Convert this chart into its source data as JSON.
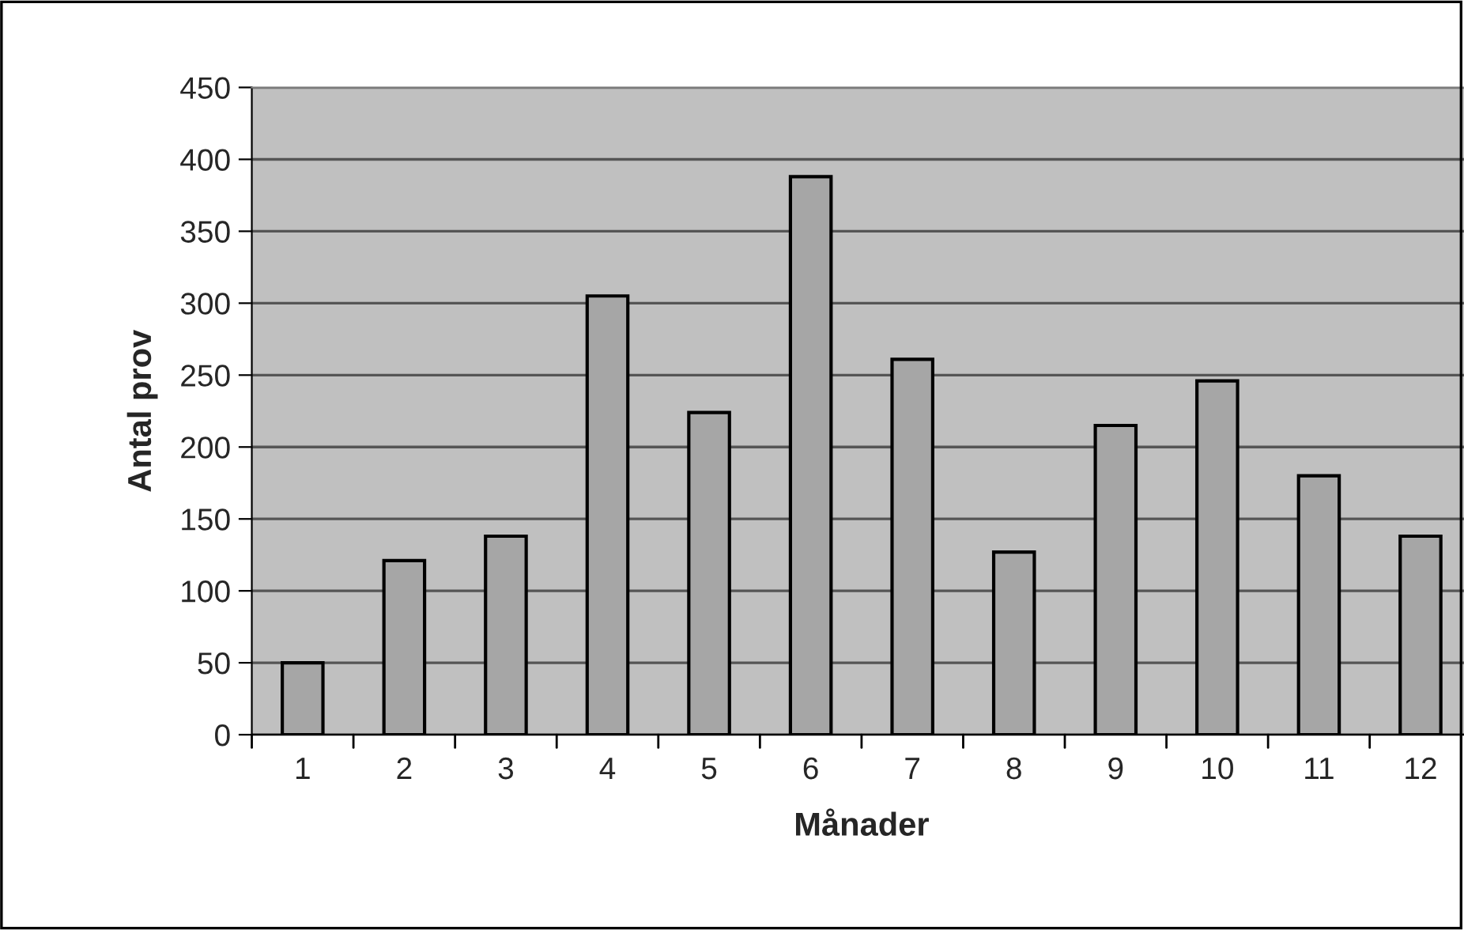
{
  "chart_data": {
    "type": "bar",
    "xlabel": "Månader",
    "ylabel": "Antal prov",
    "categories": [
      "1",
      "2",
      "3",
      "4",
      "5",
      "6",
      "7",
      "8",
      "9",
      "10",
      "11",
      "12"
    ],
    "values": [
      50,
      121,
      138,
      305,
      224,
      388,
      261,
      127,
      215,
      246,
      180,
      138
    ],
    "color": "#a6a6a6",
    "ylim": [
      0,
      450
    ],
    "yticks": [
      0,
      50,
      100,
      150,
      200,
      250,
      300,
      350,
      400,
      450
    ],
    "grid": "y",
    "legend": false
  }
}
